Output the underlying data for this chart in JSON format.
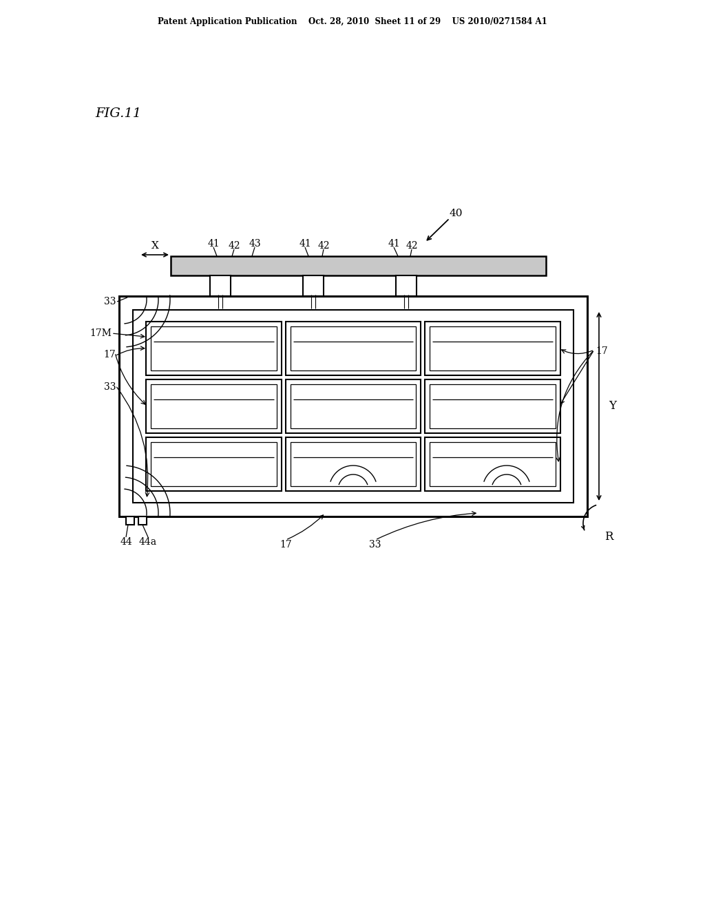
{
  "bg_color": "#ffffff",
  "line_color": "#000000",
  "header_text": "Patent Application Publication    Oct. 28, 2010  Sheet 11 of 29    US 2010/0271584 A1",
  "fig_label": "FIG.11",
  "label_40": "40",
  "label_41": "41",
  "label_42": "42",
  "label_43": "43",
  "label_33": "33",
  "label_17M": "17M",
  "label_17": "17",
  "label_44": "44",
  "label_44a": "44a",
  "label_X": "X",
  "label_Y": "Y",
  "label_R": "R",
  "bar_fill": "#c8c8c8"
}
